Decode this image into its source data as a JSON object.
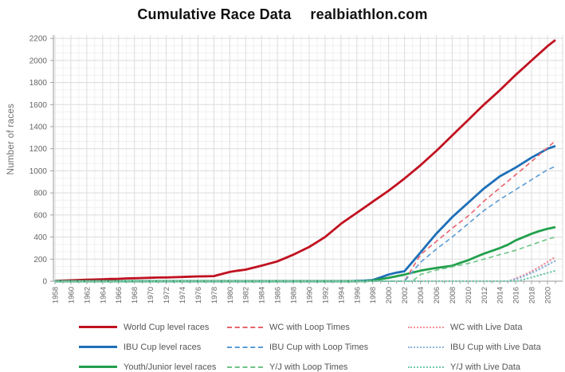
{
  "header": {
    "title": "Cumulative Race Data",
    "site": "realbiathlon.com"
  },
  "axes": {
    "ylabel": "Number of races"
  },
  "chart_data": {
    "type": "line",
    "title": "Cumulative Race Data",
    "xlabel": "",
    "ylabel": "Number of races",
    "grid": "on",
    "legend_position": "bottom",
    "xlim": [
      1957.8,
      2021.9
    ],
    "ylim": [
      0,
      2230
    ],
    "xticks": [
      1958,
      1960,
      1962,
      1964,
      1966,
      1968,
      1970,
      1972,
      1974,
      1976,
      1978,
      1980,
      1982,
      1984,
      1986,
      1988,
      1990,
      1992,
      1994,
      1996,
      1998,
      2000,
      2002,
      2004,
      2006,
      2008,
      2010,
      2012,
      2014,
      2016,
      2018,
      2020
    ],
    "yticks": [
      0,
      200,
      400,
      600,
      800,
      1000,
      1200,
      1400,
      1600,
      1800,
      2000,
      2200
    ],
    "x": [
      1958,
      1959,
      1960,
      1961,
      1962,
      1963,
      1964,
      1965,
      1966,
      1967,
      1968,
      1969,
      1970,
      1971,
      1972,
      1973,
      1974,
      1975,
      1976,
      1977,
      1978,
      1979,
      1980,
      1981,
      1982,
      1983,
      1984,
      1985,
      1986,
      1987,
      1988,
      1989,
      1990,
      1991,
      1992,
      1993,
      1994,
      1995,
      1996,
      1997,
      1998,
      1999,
      2000,
      2001,
      2002,
      2003,
      2004,
      2005,
      2006,
      2007,
      2008,
      2009,
      2010,
      2011,
      2012,
      2013,
      2014,
      2015,
      2016,
      2017,
      2018,
      2019,
      2020,
      2021
    ],
    "series": [
      {
        "name": "World Cup level races",
        "style": "solid",
        "color": "#c11120",
        "values": [
          2,
          5,
          8,
          11,
          13,
          15,
          17,
          20,
          22,
          25,
          27,
          29,
          31,
          33,
          34,
          36,
          38,
          41,
          43,
          44,
          46,
          65,
          84,
          95,
          105,
          123,
          141,
          160,
          180,
          210,
          240,
          275,
          310,
          355,
          400,
          460,
          520,
          570,
          620,
          670,
          720,
          770,
          820,
          875,
          930,
          990,
          1050,
          1115,
          1180,
          1250,
          1320,
          1390,
          1460,
          1530,
          1600,
          1665,
          1730,
          1800,
          1870,
          1935,
          2000,
          2065,
          2130,
          2185
        ]
      },
      {
        "name": "IBU Cup level races",
        "style": "solid",
        "color": "#1d6fb8",
        "values": [
          0,
          0,
          0,
          0,
          0,
          0,
          0,
          0,
          0,
          0,
          0,
          0,
          0,
          0,
          0,
          0,
          0,
          0,
          0,
          0,
          0,
          0,
          0,
          0,
          0,
          0,
          0,
          0,
          0,
          0,
          0,
          0,
          0,
          0,
          0,
          0,
          0,
          0,
          2,
          5,
          10,
          35,
          60,
          78,
          90,
          175,
          260,
          345,
          430,
          505,
          580,
          645,
          710,
          775,
          840,
          895,
          950,
          990,
          1030,
          1075,
          1120,
          1160,
          1200,
          1225
        ]
      },
      {
        "name": "Youth/Junior level races",
        "style": "solid",
        "color": "#21a04c",
        "values": [
          0,
          0,
          0,
          0,
          0,
          0,
          0,
          0,
          0,
          0,
          0,
          0,
          0,
          0,
          0,
          0,
          0,
          0,
          0,
          0,
          0,
          0,
          0,
          0,
          0,
          0,
          0,
          0,
          0,
          0,
          0,
          0,
          0,
          0,
          0,
          0,
          0,
          0,
          0,
          0,
          5,
          18,
          30,
          45,
          60,
          78,
          95,
          108,
          120,
          130,
          140,
          165,
          190,
          220,
          250,
          275,
          300,
          330,
          370,
          400,
          430,
          455,
          475,
          490
        ]
      },
      {
        "name": "WC with Loop Times",
        "style": "dashed",
        "color": "#e8636e",
        "values": [
          0,
          0,
          0,
          0,
          0,
          0,
          0,
          0,
          0,
          0,
          0,
          0,
          0,
          0,
          0,
          0,
          0,
          0,
          0,
          0,
          0,
          0,
          0,
          0,
          0,
          0,
          0,
          0,
          0,
          0,
          0,
          0,
          0,
          0,
          0,
          0,
          0,
          0,
          0,
          0,
          0,
          0,
          0,
          0,
          0,
          120,
          240,
          300,
          360,
          420,
          480,
          535,
          590,
          655,
          725,
          785,
          845,
          905,
          965,
          1025,
          1085,
          1148,
          1210,
          1272
        ]
      },
      {
        "name": "IBU Cup with Loop Times",
        "style": "dashed",
        "color": "#5b9bd5",
        "values": [
          0,
          0,
          0,
          0,
          0,
          0,
          0,
          0,
          0,
          0,
          0,
          0,
          0,
          0,
          0,
          0,
          0,
          0,
          0,
          0,
          0,
          0,
          0,
          0,
          0,
          0,
          0,
          0,
          0,
          0,
          0,
          0,
          0,
          0,
          0,
          0,
          0,
          0,
          0,
          0,
          0,
          0,
          0,
          0,
          0,
          85,
          170,
          230,
          290,
          345,
          400,
          460,
          520,
          580,
          640,
          690,
          740,
          785,
          830,
          875,
          920,
          965,
          1010,
          1040
        ]
      },
      {
        "name": "Y/J with Loop Times",
        "style": "dashed",
        "color": "#6ec487",
        "values": [
          0,
          0,
          0,
          0,
          0,
          0,
          0,
          0,
          0,
          0,
          0,
          0,
          0,
          0,
          0,
          0,
          0,
          0,
          0,
          0,
          0,
          0,
          0,
          0,
          0,
          0,
          0,
          0,
          0,
          0,
          0,
          0,
          0,
          0,
          0,
          0,
          0,
          0,
          0,
          0,
          0,
          0,
          0,
          0,
          0,
          0,
          60,
          80,
          100,
          115,
          130,
          145,
          160,
          180,
          200,
          220,
          240,
          260,
          280,
          305,
          330,
          355,
          380,
          400
        ]
      },
      {
        "name": "WC with Live Data",
        "style": "dotted",
        "color": "#f29199",
        "values": [
          0,
          0,
          0,
          0,
          0,
          0,
          0,
          0,
          0,
          0,
          0,
          0,
          0,
          0,
          0,
          0,
          0,
          0,
          0,
          0,
          0,
          0,
          0,
          0,
          0,
          0,
          0,
          0,
          0,
          0,
          0,
          0,
          0,
          0,
          0,
          0,
          0,
          0,
          0,
          0,
          0,
          0,
          0,
          0,
          0,
          0,
          0,
          0,
          0,
          0,
          0,
          0,
          0,
          0,
          0,
          0,
          0,
          0,
          25,
          55,
          90,
          130,
          175,
          220
        ]
      },
      {
        "name": "IBU Cup with Live Data",
        "style": "dotted",
        "color": "#8fb3dc",
        "values": [
          0,
          0,
          0,
          0,
          0,
          0,
          0,
          0,
          0,
          0,
          0,
          0,
          0,
          0,
          0,
          0,
          0,
          0,
          0,
          0,
          0,
          0,
          0,
          0,
          0,
          0,
          0,
          0,
          0,
          0,
          0,
          0,
          0,
          0,
          0,
          0,
          0,
          0,
          0,
          0,
          0,
          0,
          0,
          0,
          0,
          0,
          0,
          0,
          0,
          0,
          0,
          0,
          0,
          0,
          0,
          0,
          0,
          0,
          18,
          45,
          75,
          110,
          148,
          185
        ]
      },
      {
        "name": "Y/J with Live Data",
        "style": "dotted",
        "color": "#72c8ab",
        "values": [
          0,
          0,
          0,
          0,
          0,
          0,
          0,
          0,
          0,
          0,
          0,
          0,
          0,
          0,
          0,
          0,
          0,
          0,
          0,
          0,
          0,
          0,
          0,
          0,
          0,
          0,
          0,
          0,
          0,
          0,
          0,
          0,
          0,
          0,
          0,
          0,
          0,
          0,
          0,
          0,
          0,
          0,
          0,
          0,
          0,
          0,
          0,
          0,
          0,
          0,
          0,
          0,
          0,
          0,
          0,
          0,
          0,
          0,
          0,
          15,
          35,
          55,
          75,
          95
        ]
      }
    ],
    "colors": {
      "grid_major": "#dcdcdc",
      "grid_minor": "#f0f0f0",
      "spine": "#adadad",
      "tick": "#999999",
      "tick_label": "#666666"
    }
  }
}
